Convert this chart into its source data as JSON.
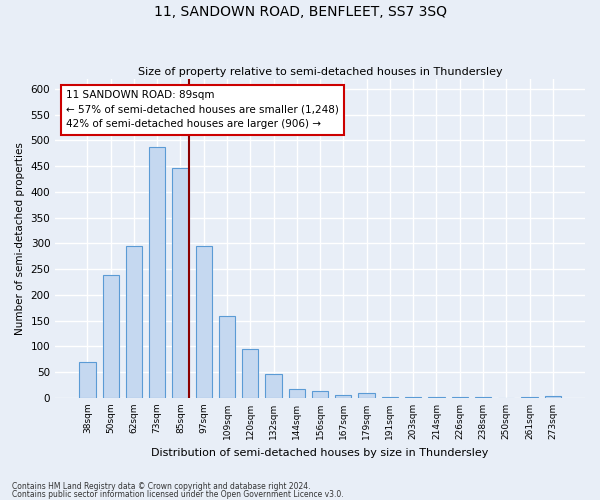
{
  "title": "11, SANDOWN ROAD, BENFLEET, SS7 3SQ",
  "subtitle": "Size of property relative to semi-detached houses in Thundersley",
  "xlabel": "Distribution of semi-detached houses by size in Thundersley",
  "ylabel": "Number of semi-detached properties",
  "footnote1": "Contains HM Land Registry data © Crown copyright and database right 2024.",
  "footnote2": "Contains public sector information licensed under the Open Government Licence v3.0.",
  "categories": [
    "38sqm",
    "50sqm",
    "62sqm",
    "73sqm",
    "85sqm",
    "97sqm",
    "109sqm",
    "120sqm",
    "132sqm",
    "144sqm",
    "156sqm",
    "167sqm",
    "179sqm",
    "191sqm",
    "203sqm",
    "214sqm",
    "226sqm",
    "238sqm",
    "250sqm",
    "261sqm",
    "273sqm"
  ],
  "values": [
    70,
    238,
    295,
    488,
    447,
    295,
    160,
    95,
    47,
    18,
    14,
    6,
    9,
    2,
    2,
    2,
    1,
    1,
    0,
    1,
    4
  ],
  "bar_color": "#c5d8f0",
  "bar_edge_color": "#5b9bd5",
  "vline_x": 4.35,
  "annotation_text": "11 SANDOWN ROAD: 89sqm\n← 57% of semi-detached houses are smaller (1,248)\n42% of semi-detached houses are larger (906) →",
  "annotation_box_color": "#ffffff",
  "annotation_box_edge": "#cc0000",
  "vline_color": "#8b0000",
  "background_color": "#e8eef7",
  "grid_color": "#ffffff",
  "ylim": [
    0,
    620
  ],
  "yticks": [
    0,
    50,
    100,
    150,
    200,
    250,
    300,
    350,
    400,
    450,
    500,
    550,
    600
  ]
}
